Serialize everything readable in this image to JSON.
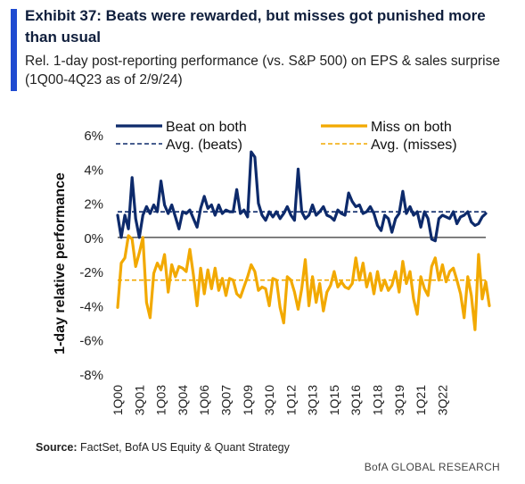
{
  "header": {
    "title": "Exhibit 37: Beats were rewarded, but misses got punished more than usual",
    "subtitle": "Rel. 1-day post-reporting performance (vs. S&P 500) on EPS & sales surprise (1Q00-4Q23 as of 2/9/24)"
  },
  "footer": {
    "source_label": "Source:",
    "source_text": " FactSet, BofA US Equity & Quant Strategy",
    "brand": "BofA GLOBAL RESEARCH"
  },
  "colors": {
    "accent": "#1f4bd1",
    "beat": "#0d2a6b",
    "miss": "#f2a900",
    "zero_line": "#333333"
  },
  "chart_data": {
    "type": "line",
    "ylabel": "1-day relative performance",
    "xlabel": "",
    "ylim": [
      -8,
      6
    ],
    "y_ticks": [
      6,
      4,
      2,
      0,
      -2,
      -4,
      -6,
      -8
    ],
    "y_tick_labels": [
      "6%",
      "4%",
      "2%",
      "0%",
      "-2%",
      "-4%",
      "-6%",
      "-8%"
    ],
    "x_tick_labels": [
      "1Q00",
      "3Q01",
      "1Q03",
      "3Q04",
      "1Q06",
      "3Q07",
      "1Q09",
      "3Q10",
      "1Q12",
      "3Q13",
      "1Q15",
      "3Q16",
      "1Q18",
      "3Q19",
      "1Q21",
      "3Q22"
    ],
    "x_tick_index": [
      0,
      6,
      12,
      18,
      24,
      30,
      36,
      42,
      48,
      54,
      60,
      66,
      72,
      78,
      84,
      90
    ],
    "grid": false,
    "legend_position": "top",
    "series": [
      {
        "name": "Beat on both",
        "style": "solid",
        "color": "#0d2a6b",
        "values": [
          1.3,
          0.0,
          1.3,
          0.5,
          3.5,
          1.1,
          0.0,
          1.3,
          1.8,
          1.4,
          1.9,
          1.5,
          3.3,
          1.9,
          1.4,
          1.9,
          1.2,
          0.5,
          1.5,
          1.4,
          1.6,
          1.1,
          0.6,
          1.7,
          2.4,
          1.7,
          1.9,
          1.3,
          1.9,
          1.4,
          1.6,
          1.5,
          1.5,
          2.8,
          1.4,
          1.6,
          1.2,
          5.0,
          4.7,
          2.0,
          1.3,
          1.0,
          1.5,
          1.2,
          1.5,
          1.1,
          1.4,
          1.8,
          1.3,
          1.0,
          4.0,
          1.5,
          1.1,
          1.3,
          1.9,
          1.3,
          1.5,
          1.8,
          1.3,
          1.2,
          1.0,
          1.6,
          1.4,
          1.3,
          2.6,
          2.1,
          1.8,
          1.9,
          1.4,
          1.5,
          1.8,
          1.4,
          0.7,
          0.4,
          1.3,
          1.1,
          0.3,
          1.1,
          1.4,
          2.7,
          1.4,
          1.8,
          1.3,
          1.5,
          0.6,
          1.5,
          1.1,
          -0.1,
          -0.2,
          1.1,
          1.3,
          1.2,
          1.1,
          1.5,
          0.8,
          1.2,
          1.3,
          1.5,
          0.9,
          0.7,
          0.8,
          1.2,
          1.4
        ],
        "average": 1.5
      },
      {
        "name": "Miss on both",
        "style": "solid",
        "color": "#f2a900",
        "values": [
          -4.1,
          -1.5,
          -1.2,
          0.1,
          -0.1,
          -1.7,
          -0.9,
          0.0,
          -3.8,
          -4.7,
          -2.1,
          -1.5,
          -1.9,
          -1.0,
          -3.2,
          -1.6,
          -2.3,
          -1.7,
          -1.8,
          -2.0,
          -0.7,
          -2.2,
          -4.0,
          -1.8,
          -3.3,
          -1.9,
          -3.0,
          -1.8,
          -3.1,
          -2.4,
          -3.4,
          -2.4,
          -2.5,
          -3.3,
          -3.5,
          -2.9,
          -2.3,
          -1.6,
          -2.0,
          -3.1,
          -2.9,
          -3.0,
          -4.0,
          -2.4,
          -2.5,
          -4.1,
          -5.0,
          -2.3,
          -2.5,
          -3.2,
          -4.2,
          -3.0,
          -1.3,
          -4.0,
          -2.3,
          -3.8,
          -2.7,
          -4.3,
          -3.2,
          -2.8,
          -2.0,
          -2.9,
          -2.6,
          -2.9,
          -3.0,
          -2.7,
          -1.2,
          -2.5,
          -1.5,
          -2.9,
          -2.1,
          -3.3,
          -2.0,
          -3.1,
          -2.5,
          -3.1,
          -2.8,
          -2.0,
          -3.2,
          -1.4,
          -2.7,
          -2.0,
          -3.6,
          -4.5,
          -2.3,
          -3.0,
          -3.4,
          -1.7,
          -1.2,
          -2.5,
          -1.6,
          -2.6,
          -2.0,
          -1.8,
          -2.5,
          -3.3,
          -4.7,
          -2.3,
          -3.4,
          -5.4,
          -1.0,
          -3.6,
          -2.6,
          -4.0
        ],
        "average": -2.5
      },
      {
        "name": "Avg. (beats)",
        "style": "dashed",
        "color": "#0d2a6b",
        "value": 1.5
      },
      {
        "name": "Avg. (misses)",
        "style": "dashed",
        "color": "#f2a900",
        "value": -2.5
      }
    ]
  }
}
